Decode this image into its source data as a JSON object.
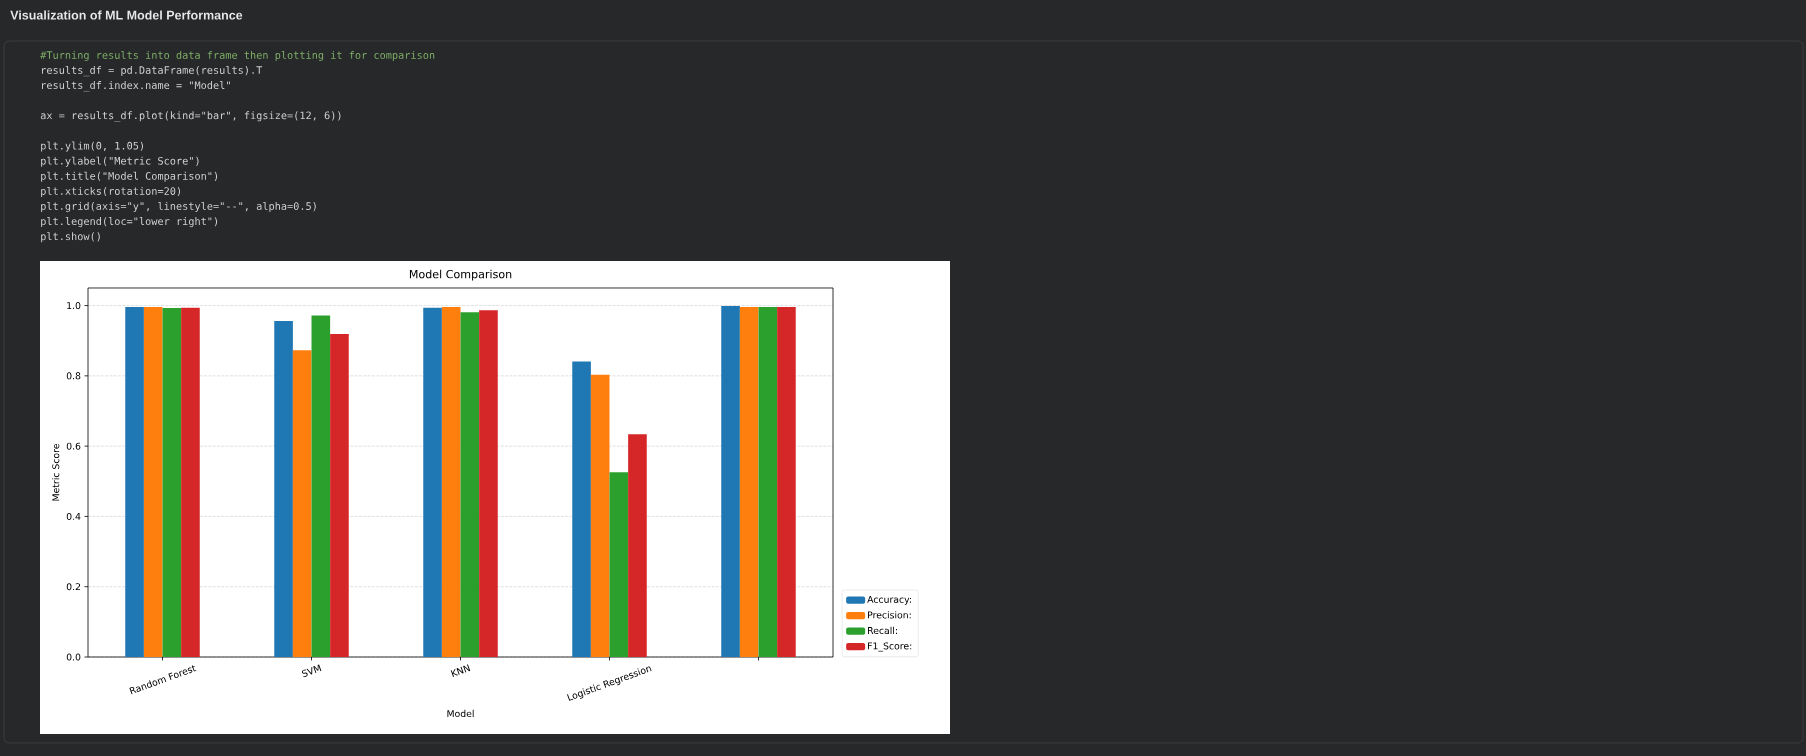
{
  "chart_data": {
    "type": "bar",
    "title": "Model Comparison",
    "xlabel": "Model",
    "ylabel": "Metric Score",
    "categories": [
      "Random Forest",
      "SVM",
      "KNN",
      "Logistic Regression",
      null
    ],
    "series": [
      {
        "name": "Accuracy:",
        "color": "#1f77b4",
        "values": [
          0.996,
          0.956,
          0.994,
          0.841,
          0.999
        ]
      },
      {
        "name": "Precision:",
        "color": "#ff7f0e",
        "values": [
          0.996,
          0.873,
          0.996,
          0.803,
          0.996
        ]
      },
      {
        "name": "Recall:",
        "color": "#2ca02c",
        "values": [
          0.993,
          0.972,
          0.981,
          0.526,
          0.996
        ]
      },
      {
        "name": "F1_Score:",
        "color": "#d62728",
        "values": [
          0.994,
          0.919,
          0.987,
          0.634,
          0.996
        ]
      }
    ],
    "ylim": [
      0,
      1.05
    ],
    "yticks": [
      {
        "value": 0,
        "label": "0.0"
      },
      0.2,
      0.4,
      0.6,
      0.8,
      {
        "value": 1,
        "label": "1.0"
      }
    ],
    "grid": "y",
    "legend": "bottom right",
    "annotations": [
      "Visualization of ML Model Performance",
      "#Turning results into data frame then plotting it for comparison",
      "results_df = pd.DataFrame(results).T",
      "results_df.index.name = \"Model\"",
      "ax = results_df.plot(kind=\"bar\", figsize=(12, 6))",
      "plt.ylim(0, 1.05)",
      "plt.ylabel(\"Metric Score\")",
      "plt.title(\"Model Comparison\")",
      "plt.xticks(rotation=20)",
      "plt.grid(axis=\"y\", linestyle=\"--\", alpha=0.5)",
      "plt.legend(loc=\"lower right\")",
      "plt.show()"
    ]
  }
}
